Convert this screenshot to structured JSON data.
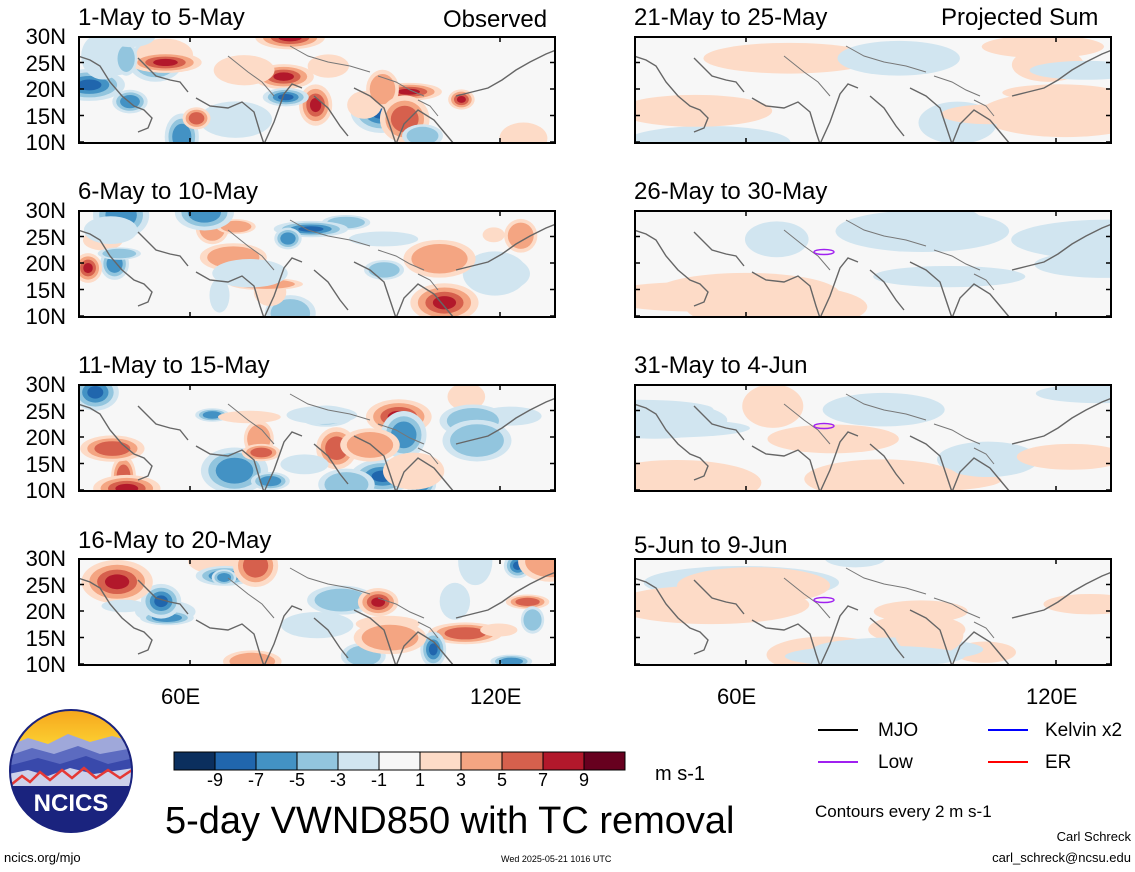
{
  "header": {
    "observed_label": "Observed",
    "projected_label": "Projected Sum"
  },
  "panels": [
    {
      "title": "1-May to 5-May",
      "kind": "obs",
      "seed": 3
    },
    {
      "title": "6-May to 10-May",
      "kind": "obs",
      "seed": 7
    },
    {
      "title": "11-May to 15-May",
      "kind": "obs",
      "seed": 11
    },
    {
      "title": "16-May to 20-May",
      "kind": "obs",
      "seed": 17
    },
    {
      "title": "21-May to 25-May",
      "kind": "proj",
      "seed": 5
    },
    {
      "title": "26-May to 30-May",
      "kind": "proj",
      "seed": 9
    },
    {
      "title": "31-May to 4-Jun",
      "kind": "proj",
      "seed": 13
    },
    {
      "title": "5-Jun to 9-Jun",
      "kind": "proj",
      "seed": 19
    }
  ],
  "axes": {
    "lat_labels": [
      "30N",
      "25N",
      "20N",
      "15N",
      "10N"
    ],
    "lon_labels": [
      "60E",
      "120E"
    ]
  },
  "colorbar": {
    "colors": [
      "#0b2f5e",
      "#2066ad",
      "#4392c4",
      "#92c5de",
      "#d1e5f0",
      "#f7f7f7",
      "#fddbc7",
      "#f4a582",
      "#d6604d",
      "#b2182b",
      "#67001f"
    ],
    "labels": [
      "-9",
      "-7",
      "-5",
      "-3",
      "-1",
      "1",
      "3",
      "5",
      "7",
      "9"
    ],
    "units": "m s-1"
  },
  "legend": {
    "items": [
      {
        "label": "MJO",
        "color": "#000000"
      },
      {
        "label": "Kelvin x2",
        "color": "#0000ff"
      },
      {
        "label": "Low",
        "color": "#a020f0"
      },
      {
        "label": "ER",
        "color": "#ff0000"
      }
    ],
    "contours_note": "Contours every 2 m s-1"
  },
  "footer": {
    "logo_text": "NCICS",
    "main_title": "5-day VWND850 with TC removal",
    "url": "ncics.org/mjo",
    "timestamp": "Wed 2025-05-21 1016 UTC",
    "author": "Carl Schreck",
    "email": "carl_schreck@ncsu.edu"
  }
}
